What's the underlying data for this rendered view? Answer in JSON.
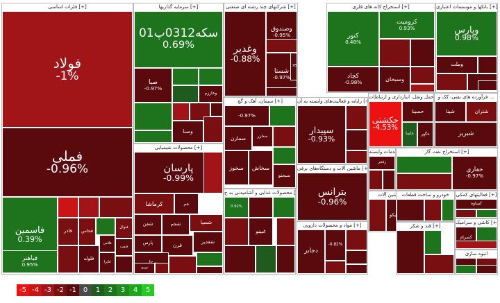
{
  "colors": {
    "-5": "#ee1111",
    "-4": "#cc1414",
    "-3": "#a11418",
    "-2": "#7a0f12",
    "-1": "#5a0a0d",
    "0": "#4a4a4a",
    "1": "#1f5a1f",
    "2": "#1d741d",
    "3": "#1c8d1c",
    "4": "#1fa61f",
    "5": "#22cc22"
  },
  "legend": [
    "-5",
    "-4",
    "-3",
    "-2",
    "-1",
    "0",
    "1",
    "2",
    "3",
    "4",
    "5"
  ],
  "sectors": [
    {
      "key": "s1",
      "title": "فلزات اساسی [+]",
      "cells": [
        {
          "name": "فولاد",
          "pct": "-1%",
          "c": "-3",
          "big": 1
        },
        {
          "name": "فملی",
          "pct": "-0.96%",
          "c": "-1",
          "big": 1
        },
        {
          "name": "فاسمین",
          "pct": "0.39%",
          "c": "2",
          "big": 2
        },
        {
          "name": "",
          "pct": "",
          "c": "-4"
        },
        {
          "name": "",
          "pct": "",
          "c": "-3"
        },
        {
          "name": "",
          "pct": "",
          "c": "-2"
        },
        {
          "name": "فخاس",
          "pct": "",
          "c": "-2"
        },
        {
          "name": "",
          "pct": "",
          "c": "2"
        },
        {
          "name": "فلوله",
          "pct": "",
          "c": "-1"
        },
        {
          "name": "فاذر",
          "pct": "",
          "c": "-2"
        },
        {
          "name": "فلامی",
          "pct": "",
          "c": "-1"
        },
        {
          "name": "فنوال",
          "pct": "",
          "c": "-2"
        },
        {
          "name": "فنفت",
          "pct": "",
          "c": "-1"
        },
        {
          "name": "فایرا",
          "pct": "",
          "c": "-1"
        },
        {
          "name": "فباهنر",
          "pct": "0.95%",
          "c": "2"
        },
        {
          "name": "",
          "pct": "",
          "c": "-2"
        },
        {
          "name": "",
          "pct": "",
          "c": "-1"
        },
        {
          "name": "",
          "pct": "",
          "c": "2"
        }
      ]
    },
    {
      "key": "s2",
      "title": "سرمایه گذاریها [+]",
      "cells": [
        {
          "name": "سکه0312پ01",
          "pct": "0.69%",
          "c": "2",
          "big": 1
        },
        {
          "name": "صبا",
          "pct": "-0.97%",
          "c": "-1"
        },
        {
          "name": "",
          "pct": "",
          "c": "2"
        },
        {
          "name": "",
          "pct": "",
          "c": "2"
        },
        {
          "name": "",
          "pct": "",
          "c": "1"
        },
        {
          "name": "",
          "pct": "",
          "c": "-3"
        },
        {
          "name": "",
          "pct": "",
          "c": "-2"
        },
        {
          "name": "وخارزم",
          "pct": "",
          "c": "-1"
        },
        {
          "name": "",
          "pct": "",
          "c": "2"
        },
        {
          "name": "",
          "pct": "",
          "c": "-1"
        },
        {
          "name": "",
          "pct": "",
          "c": "2"
        },
        {
          "name": "وصنا",
          "pct": "",
          "c": "-1"
        },
        {
          "name": "",
          "pct": "",
          "c": "-2"
        }
      ]
    },
    {
      "key": "s3",
      "title": "محصولات شیمیایی [+]",
      "cells": [
        {
          "name": "پارسان",
          "pct": "-0.99%",
          "c": "-1",
          "big": 1
        },
        {
          "name": "",
          "pct": "",
          "c": "-3"
        },
        {
          "name": "کرماشا",
          "pct": "",
          "c": "-2"
        },
        {
          "name": "جم",
          "pct": "",
          "c": "-1"
        },
        {
          "name": "شفن",
          "pct": "",
          "c": "-1"
        },
        {
          "name": "شجم",
          "pct": "",
          "c": "-1"
        },
        {
          "name": "پارس",
          "pct": "",
          "c": "-1"
        },
        {
          "name": "شسپا",
          "pct": "",
          "c": "-2"
        },
        {
          "name": "قرن",
          "pct": "",
          "c": "-1"
        },
        {
          "name": "شغدیر",
          "pct": "",
          "c": "-1"
        },
        {
          "name": "بوعلی",
          "pct": "",
          "c": "-1"
        },
        {
          "name": "",
          "pct": "",
          "c": "-2"
        },
        {
          "name": "نوری",
          "pct": "",
          "c": "-1"
        },
        {
          "name": "",
          "pct": "",
          "c": "2"
        },
        {
          "name": "",
          "pct": "",
          "c": "-1"
        },
        {
          "name": "",
          "pct": "",
          "c": "-2"
        }
      ]
    },
    {
      "key": "s4",
      "title": "شرکتهای چند رشته ای صنعتی [+]",
      "cells": [
        {
          "name": "وغدیر",
          "pct": "-0.88%",
          "c": "-1",
          "big": 1
        },
        {
          "name": "وصندوق",
          "pct": "-0.95%",
          "c": "-1"
        },
        {
          "name": "شستا",
          "pct": "-0.97%",
          "c": "-1"
        },
        {
          "name": "",
          "pct": "-0.78%",
          "c": "-1"
        },
        {
          "name": "",
          "pct": "",
          "c": "-2"
        },
        {
          "name": "",
          "pct": "",
          "c": "-1"
        }
      ]
    },
    {
      "key": "s5",
      "title": "سیمان، آهک و گچ [+]",
      "cells": [
        {
          "name": "",
          "pct": "-0.97%",
          "c": "-1"
        },
        {
          "name": "",
          "pct": "",
          "c": "2"
        },
        {
          "name": "سخزر",
          "pct": "",
          "c": "-1"
        },
        {
          "name": "سمازن",
          "pct": "",
          "c": "-1"
        },
        {
          "name": "سخوز",
          "pct": "",
          "c": "-1"
        },
        {
          "name": "",
          "pct": "",
          "c": "-2"
        },
        {
          "name": "سخاش",
          "pct": "",
          "c": "-1"
        },
        {
          "name": "",
          "pct": "",
          "c": "2"
        },
        {
          "name": "سبجنو",
          "pct": "",
          "c": "-1"
        }
      ]
    },
    {
      "key": "s6",
      "title": "محصولات غذایی و آشامیدنی به ج [+]",
      "cells": [
        {
          "name": "",
          "pct": "0.92%",
          "c": "2"
        },
        {
          "name": "",
          "pct": "",
          "c": "-1"
        },
        {
          "name": "غبینو",
          "pct": "",
          "c": "-1"
        },
        {
          "name": "",
          "pct": "",
          "c": "2"
        },
        {
          "name": "",
          "pct": "",
          "c": "-2"
        },
        {
          "name": "",
          "pct": "",
          "c": "-1"
        },
        {
          "name": "",
          "pct": "",
          "c": "1"
        },
        {
          "name": "",
          "pct": "",
          "c": "-2"
        },
        {
          "name": "",
          "pct": "",
          "c": "-1"
        }
      ]
    },
    {
      "key": "s7",
      "title": "استخراج کانه های فلزی [+]",
      "cells": [
        {
          "name": "کرومیت",
          "pct": "0.93%",
          "c": "2"
        },
        {
          "name": "کنور",
          "pct": "0.48%",
          "c": "2"
        },
        {
          "name": "کچاد",
          "pct": "-0.98%",
          "c": "-1"
        },
        {
          "name": "",
          "pct": "",
          "c": "-2"
        },
        {
          "name": "",
          "pct": "",
          "c": "-1"
        },
        {
          "name": "وسبحان",
          "pct": "",
          "c": "-1"
        },
        {
          "name": "",
          "pct": "",
          "c": "-2"
        },
        {
          "name": "",
          "pct": "",
          "c": "-3"
        }
      ]
    },
    {
      "key": "s8",
      "title": "بانکها و موسسات اعتباری [+]",
      "cells": [
        {
          "name": "وپارس",
          "pct": "0.98%",
          "c": "2",
          "big": 1
        },
        {
          "name": "وملت",
          "pct": "",
          "c": "-1"
        },
        {
          "name": "",
          "pct": "",
          "c": "-1"
        },
        {
          "name": "",
          "pct": "",
          "c": "-2"
        },
        {
          "name": "",
          "pct": "",
          "c": "-1"
        },
        {
          "name": "",
          "pct": "",
          "c": "-1"
        }
      ]
    },
    {
      "key": "s9",
      "title": "رایانه و فعالیت‌های وابسته به آن [+]",
      "cells": [
        {
          "name": "سپیدار",
          "pct": "-0.93%",
          "c": "-1",
          "big": 1
        },
        {
          "name": "",
          "pct": "",
          "c": "-2"
        },
        {
          "name": "",
          "pct": "",
          "c": "-1"
        },
        {
          "name": "",
          "pct": "",
          "c": "-2"
        }
      ]
    },
    {
      "key": "s10",
      "title": "ماشین آلات و دستگاه‌های برقی [+]",
      "cells": [
        {
          "name": "بترانس",
          "pct": "-0.96%",
          "c": "-1",
          "big": 1
        }
      ]
    },
    {
      "key": "s11",
      "title": "مواد و محصولات دارویی [+]",
      "cells": [
        {
          "name": "دجابر",
          "pct": "",
          "c": "-1"
        },
        {
          "name": "",
          "pct": "-0.82%",
          "c": "-1"
        },
        {
          "name": "",
          "pct": "",
          "c": "-2"
        },
        {
          "name": "",
          "pct": "",
          "c": "-1"
        },
        {
          "name": "",
          "pct": "",
          "c": "-2"
        },
        {
          "name": "",
          "pct": "",
          "c": "-1"
        }
      ]
    },
    {
      "key": "s12",
      "title": "حمل ونقل، انبارداری و ارتباطات [+]",
      "cells": [
        {
          "name": "حکشتی",
          "pct": "-4.53%",
          "c": "-5",
          "big": 1
        },
        {
          "name": "حسینا",
          "pct": "",
          "c": "-1"
        },
        {
          "name": "حاسا",
          "pct": "",
          "c": "1"
        },
        {
          "name": "حگهر",
          "pct": "",
          "c": "-1"
        }
      ]
    },
    {
      "key": "s13",
      "title": "فرآورده های نفتی، کک و ...",
      "cells": [
        {
          "name": "شپنا",
          "pct": "",
          "c": "-1"
        },
        {
          "name": "شتران",
          "pct": "",
          "c": "-2"
        },
        {
          "name": "شبریز",
          "pct": "",
          "c": "-1"
        }
      ]
    },
    {
      "key": "s14",
      "title": "زراعت و خدمات وابسته [+]",
      "cells": [
        {
          "name": "زفجر",
          "pct": "",
          "c": "-1"
        },
        {
          "name": "",
          "pct": "",
          "c": "-2"
        },
        {
          "name": "",
          "pct": "",
          "c": "-1"
        },
        {
          "name": "",
          "pct": "",
          "c": "-3"
        }
      ]
    },
    {
      "key": "s15",
      "title": "استخراج نفت گاز [+]",
      "cells": [
        {
          "name": "حفاری",
          "pct": "-0.97%",
          "c": "-1"
        },
        {
          "name": "",
          "pct": "",
          "c": "2"
        },
        {
          "name": "",
          "pct": "",
          "c": "-2"
        }
      ]
    },
    {
      "key": "s16",
      "title": "ماشین آلات [+]",
      "cells": [
        {
          "name": "",
          "pct": "",
          "c": "-2"
        },
        {
          "name": "تاپیکو",
          "pct": "",
          "c": "-1"
        },
        {
          "name": "",
          "pct": "",
          "c": "-3"
        }
      ]
    },
    {
      "key": "s17",
      "title": "خودرو و ساخت قطعات",
      "cells": [
        {
          "name": "",
          "pct": "",
          "c": "-1"
        },
        {
          "name": "",
          "pct": "",
          "c": "-2"
        },
        {
          "name": "",
          "pct": "",
          "c": "2"
        }
      ]
    },
    {
      "key": "s18",
      "title": "فعالیتهای کمکی [+]",
      "cells": [
        {
          "name": "کساوه",
          "pct": "",
          "c": "-1"
        },
        {
          "name": "",
          "pct": "",
          "c": "-2"
        },
        {
          "name": "",
          "pct": "",
          "c": "2"
        }
      ]
    },
    {
      "key": "s19",
      "title": "کاشی و سرامیک [+]",
      "cells": [
        {
          "name": "کسرام",
          "pct": "",
          "c": "-1"
        },
        {
          "name": "",
          "pct": "",
          "c": "2"
        },
        {
          "name": "",
          "pct": "",
          "c": "-3"
        }
      ]
    },
    {
      "key": "s20",
      "title": "قند و شکر [+]",
      "cells": [
        {
          "name": "",
          "pct": "",
          "c": "-1"
        },
        {
          "name": "",
          "pct": "",
          "c": "2"
        },
        {
          "name": "",
          "pct": "",
          "c": "-2"
        }
      ]
    },
    {
      "key": "s21",
      "title": "انبوه سازی",
      "cells": [
        {
          "name": "",
          "pct": "",
          "c": "-1"
        },
        {
          "name": "",
          "pct": "",
          "c": "-2"
        },
        {
          "name": "",
          "pct": "",
          "c": "2"
        },
        {
          "name": "",
          "pct": "",
          "c": "-1"
        }
      ]
    }
  ]
}
